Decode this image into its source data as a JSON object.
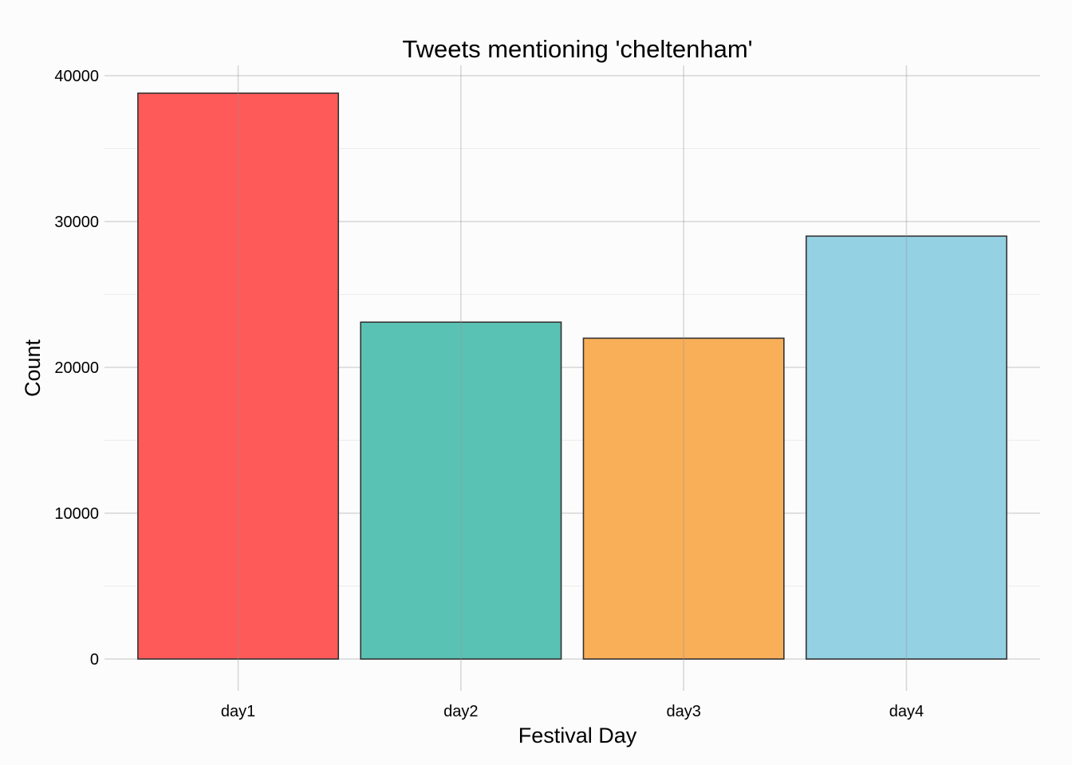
{
  "chart_data": {
    "type": "bar",
    "title": "Tweets mentioning 'cheltenham'",
    "xlabel": "Festival Day",
    "ylabel": "Count",
    "categories": [
      "day1",
      "day2",
      "day3",
      "day4"
    ],
    "values": [
      38800,
      23100,
      22000,
      29000
    ],
    "bar_colors": [
      "#ff5a5a",
      "#5ac2b4",
      "#f9ae58",
      "#94d1e3"
    ],
    "bar_outline_color": "#333333",
    "ylim": [
      0,
      40000
    ],
    "yticks": [
      0,
      10000,
      20000,
      30000,
      40000
    ],
    "ytick_labels": [
      "0",
      "10000",
      "20000",
      "30000",
      "40000"
    ],
    "grid": true,
    "legend": "none"
  }
}
